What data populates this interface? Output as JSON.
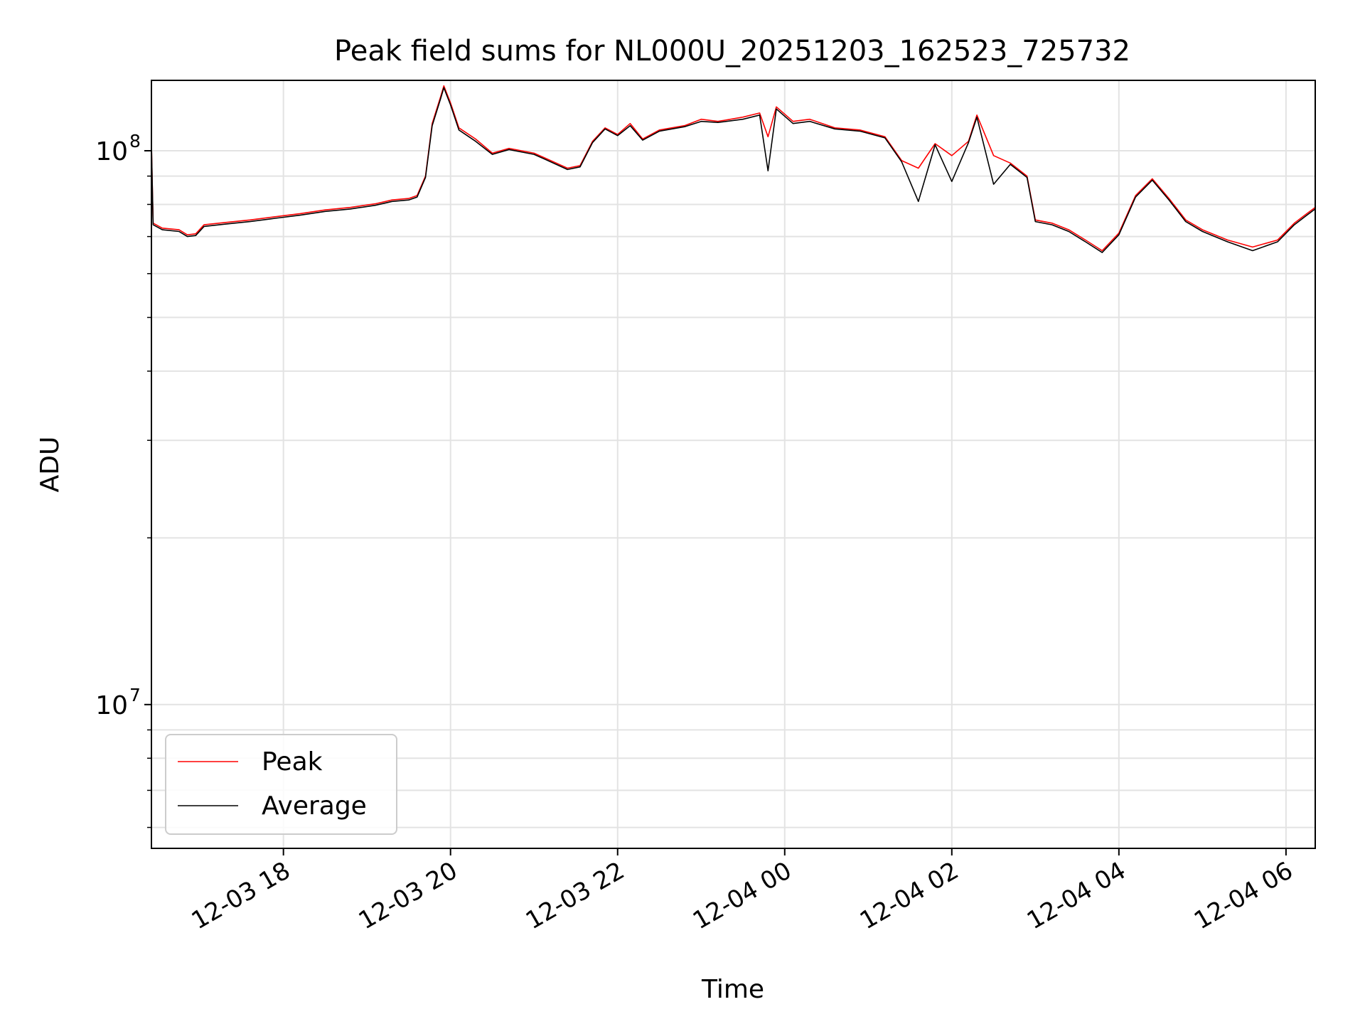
{
  "chart_data": {
    "type": "line",
    "title": "Peak field sums for NL000U_20251203_162523_725732",
    "xlabel": "Time",
    "ylabel": "ADU",
    "yscale": "log",
    "ylim": [
      5500000,
      134000000
    ],
    "xlim_hours": [
      16.42,
      30.35
    ],
    "x_unit": "hours since 2025-12-03 00:00",
    "x_ticks": [
      {
        "value": 18,
        "label": "12-03 18"
      },
      {
        "value": 20,
        "label": "12-03 20"
      },
      {
        "value": 22,
        "label": "12-03 22"
      },
      {
        "value": 24,
        "label": "12-04 00"
      },
      {
        "value": 26,
        "label": "12-04 02"
      },
      {
        "value": 28,
        "label": "12-04 04"
      },
      {
        "value": 30,
        "label": "12-04 06"
      }
    ],
    "y_major_ticks": [
      {
        "value": 10000000,
        "base": "10",
        "exp": "7"
      },
      {
        "value": 100000000,
        "base": "10",
        "exp": "8"
      }
    ],
    "y_minor_ticks": [
      6000000,
      7000000,
      8000000,
      9000000,
      20000000,
      30000000,
      40000000,
      50000000,
      60000000,
      70000000,
      80000000,
      90000000
    ],
    "grid": true,
    "legend_position": "lower-left",
    "series": [
      {
        "name": "Peak",
        "color": "#ff0000",
        "points": [
          [
            16.42,
            103000000
          ],
          [
            16.44,
            74000000
          ],
          [
            16.55,
            72500000
          ],
          [
            16.75,
            72000000
          ],
          [
            16.85,
            70500000
          ],
          [
            16.95,
            70800000
          ],
          [
            17.05,
            73500000
          ],
          [
            17.3,
            74200000
          ],
          [
            17.6,
            75000000
          ],
          [
            17.9,
            76000000
          ],
          [
            18.2,
            77000000
          ],
          [
            18.5,
            78200000
          ],
          [
            18.8,
            79000000
          ],
          [
            19.1,
            80200000
          ],
          [
            19.3,
            81500000
          ],
          [
            19.5,
            82000000
          ],
          [
            19.6,
            83000000
          ],
          [
            19.7,
            90000000
          ],
          [
            19.78,
            112000000
          ],
          [
            19.88,
            125000000
          ],
          [
            19.92,
            131000000
          ],
          [
            20.0,
            122000000
          ],
          [
            20.1,
            110000000
          ],
          [
            20.3,
            105000000
          ],
          [
            20.5,
            99000000
          ],
          [
            20.7,
            101000000
          ],
          [
            21.0,
            99000000
          ],
          [
            21.2,
            96000000
          ],
          [
            21.4,
            93000000
          ],
          [
            21.55,
            94000000
          ],
          [
            21.7,
            104000000
          ],
          [
            21.85,
            110000000
          ],
          [
            22.0,
            107000000
          ],
          [
            22.15,
            112000000
          ],
          [
            22.3,
            105000000
          ],
          [
            22.5,
            109000000
          ],
          [
            22.8,
            111000000
          ],
          [
            23.0,
            114000000
          ],
          [
            23.2,
            113000000
          ],
          [
            23.5,
            115000000
          ],
          [
            23.7,
            117000000
          ],
          [
            23.8,
            106000000
          ],
          [
            23.9,
            120000000
          ],
          [
            24.1,
            113000000
          ],
          [
            24.3,
            114000000
          ],
          [
            24.6,
            110000000
          ],
          [
            24.9,
            109000000
          ],
          [
            25.2,
            106000000
          ],
          [
            25.4,
            96000000
          ],
          [
            25.6,
            93000000
          ],
          [
            25.8,
            103000000
          ],
          [
            26.0,
            98000000
          ],
          [
            26.2,
            104000000
          ],
          [
            26.3,
            116000000
          ],
          [
            26.5,
            98000000
          ],
          [
            26.7,
            95000000
          ],
          [
            26.9,
            90000000
          ],
          [
            27.0,
            75000000
          ],
          [
            27.2,
            74000000
          ],
          [
            27.4,
            72000000
          ],
          [
            27.6,
            69000000
          ],
          [
            27.8,
            66000000
          ],
          [
            28.0,
            71000000
          ],
          [
            28.2,
            83000000
          ],
          [
            28.4,
            89000000
          ],
          [
            28.6,
            82000000
          ],
          [
            28.8,
            75000000
          ],
          [
            29.0,
            72000000
          ],
          [
            29.3,
            69000000
          ],
          [
            29.6,
            67000000
          ],
          [
            29.9,
            69000000
          ],
          [
            30.1,
            74000000
          ],
          [
            30.25,
            77000000
          ],
          [
            30.35,
            79000000
          ]
        ]
      },
      {
        "name": "Average",
        "color": "#000000",
        "points": [
          [
            16.42,
            103000000
          ],
          [
            16.44,
            73500000
          ],
          [
            16.55,
            72000000
          ],
          [
            16.75,
            71500000
          ],
          [
            16.85,
            70000000
          ],
          [
            16.95,
            70300000
          ],
          [
            17.05,
            73000000
          ],
          [
            17.3,
            73700000
          ],
          [
            17.6,
            74500000
          ],
          [
            17.9,
            75500000
          ],
          [
            18.2,
            76500000
          ],
          [
            18.5,
            77700000
          ],
          [
            18.8,
            78500000
          ],
          [
            19.1,
            79700000
          ],
          [
            19.3,
            81000000
          ],
          [
            19.5,
            81500000
          ],
          [
            19.6,
            82500000
          ],
          [
            19.7,
            89500000
          ],
          [
            19.78,
            111000000
          ],
          [
            19.88,
            124000000
          ],
          [
            19.92,
            130000000
          ],
          [
            20.0,
            121000000
          ],
          [
            20.1,
            109000000
          ],
          [
            20.3,
            104000000
          ],
          [
            20.5,
            98500000
          ],
          [
            20.7,
            100500000
          ],
          [
            21.0,
            98500000
          ],
          [
            21.2,
            95500000
          ],
          [
            21.4,
            92500000
          ],
          [
            21.55,
            93500000
          ],
          [
            21.7,
            103500000
          ],
          [
            21.85,
            109500000
          ],
          [
            22.0,
            106500000
          ],
          [
            22.15,
            111000000
          ],
          [
            22.3,
            104500000
          ],
          [
            22.5,
            108500000
          ],
          [
            22.8,
            110500000
          ],
          [
            23.0,
            113000000
          ],
          [
            23.2,
            112500000
          ],
          [
            23.5,
            114000000
          ],
          [
            23.7,
            116000000
          ],
          [
            23.8,
            92000000
          ],
          [
            23.9,
            119000000
          ],
          [
            24.1,
            112000000
          ],
          [
            24.3,
            113000000
          ],
          [
            24.6,
            109500000
          ],
          [
            24.9,
            108500000
          ],
          [
            25.2,
            105500000
          ],
          [
            25.4,
            95500000
          ],
          [
            25.6,
            81000000
          ],
          [
            25.8,
            102500000
          ],
          [
            26.0,
            88000000
          ],
          [
            26.2,
            103500000
          ],
          [
            26.3,
            115000000
          ],
          [
            26.5,
            87000000
          ],
          [
            26.7,
            94500000
          ],
          [
            26.9,
            89500000
          ],
          [
            27.0,
            74500000
          ],
          [
            27.2,
            73500000
          ],
          [
            27.4,
            71500000
          ],
          [
            27.6,
            68500000
          ],
          [
            27.8,
            65500000
          ],
          [
            28.0,
            70500000
          ],
          [
            28.2,
            82500000
          ],
          [
            28.4,
            88500000
          ],
          [
            28.6,
            81500000
          ],
          [
            28.8,
            74500000
          ],
          [
            29.0,
            71500000
          ],
          [
            29.3,
            68500000
          ],
          [
            29.6,
            66000000
          ],
          [
            29.9,
            68500000
          ],
          [
            30.1,
            73500000
          ],
          [
            30.25,
            76500000
          ],
          [
            30.35,
            78500000
          ]
        ]
      }
    ]
  }
}
